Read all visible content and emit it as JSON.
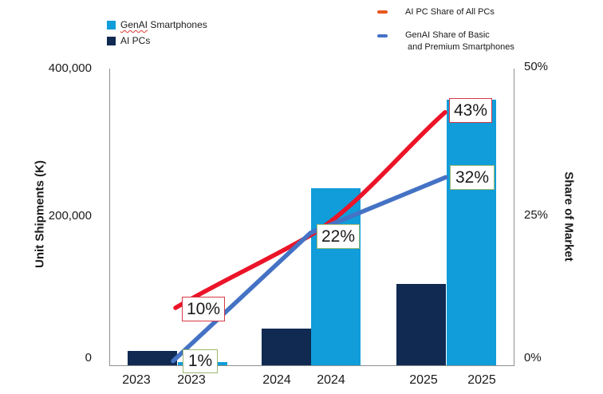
{
  "legend": {
    "bars": [
      {
        "word": "GenAI",
        "rest": " Smartphones",
        "color": "#109DD9"
      },
      {
        "label": "AI PCs",
        "color": "#102A52"
      }
    ],
    "lines": [
      {
        "label": "AI PC Share of All PCs",
        "marker_color": "#E8571E"
      },
      {
        "label_line1": "GenAI Share of Basic",
        "label_line2": "and Premium Smartphones",
        "marker_color": "#4472C4"
      }
    ]
  },
  "chart_data": {
    "type": "combo-bar-line",
    "categories": [
      "2023",
      "2024",
      "2025"
    ],
    "x_tick_labels": [
      "2023",
      "2023",
      "2024",
      "2024",
      "2025",
      "2025"
    ],
    "bar_series": [
      {
        "name": "AI PCs",
        "color": "#102A52",
        "values": [
          20000,
          50000,
          110000
        ]
      },
      {
        "name": "GenAI Smartphones",
        "color": "#109DD9",
        "values": [
          4000,
          240000,
          360000
        ]
      }
    ],
    "line_series": [
      {
        "name": "AI PC Share of All PCs",
        "color": "#EB1428",
        "values_pct": [
          10,
          22,
          43
        ]
      },
      {
        "name": "GenAI Share of Basic and Premium Smartphones",
        "color": "#4472C4",
        "values_pct": [
          1,
          22,
          32
        ]
      }
    ],
    "point_labels": [
      {
        "text": "10%",
        "series": "AI PC Share of All PCs",
        "category": "2023",
        "border": "red"
      },
      {
        "text": "43%",
        "series": "AI PC Share of All PCs",
        "category": "2025",
        "border": "red"
      },
      {
        "text": "1%",
        "series": "GenAI Share of Basic and Premium Smartphones",
        "category": "2023",
        "border": "green"
      },
      {
        "text": "22%",
        "series": "GenAI Share of Basic and Premium Smartphones",
        "category": "2024",
        "border": "green"
      },
      {
        "text": "32%",
        "series": "GenAI Share of Basic and Premium Smartphones",
        "category": "2025",
        "border": "green"
      }
    ],
    "left_axis": {
      "title": "Unit Shipments (K)",
      "min": 0,
      "max": 400000,
      "ticks": [
        "0",
        "200,000",
        "400,000"
      ]
    },
    "right_axis": {
      "title": "Share of Market",
      "min": 0,
      "max": 50,
      "ticks": [
        "0%",
        "25%",
        "50%"
      ]
    },
    "grid": false,
    "legend_position": "top"
  },
  "colors": {
    "label_border_red": "#D63A47",
    "label_border_green": "#9CB873",
    "axis_line": "#8F8F8F"
  }
}
